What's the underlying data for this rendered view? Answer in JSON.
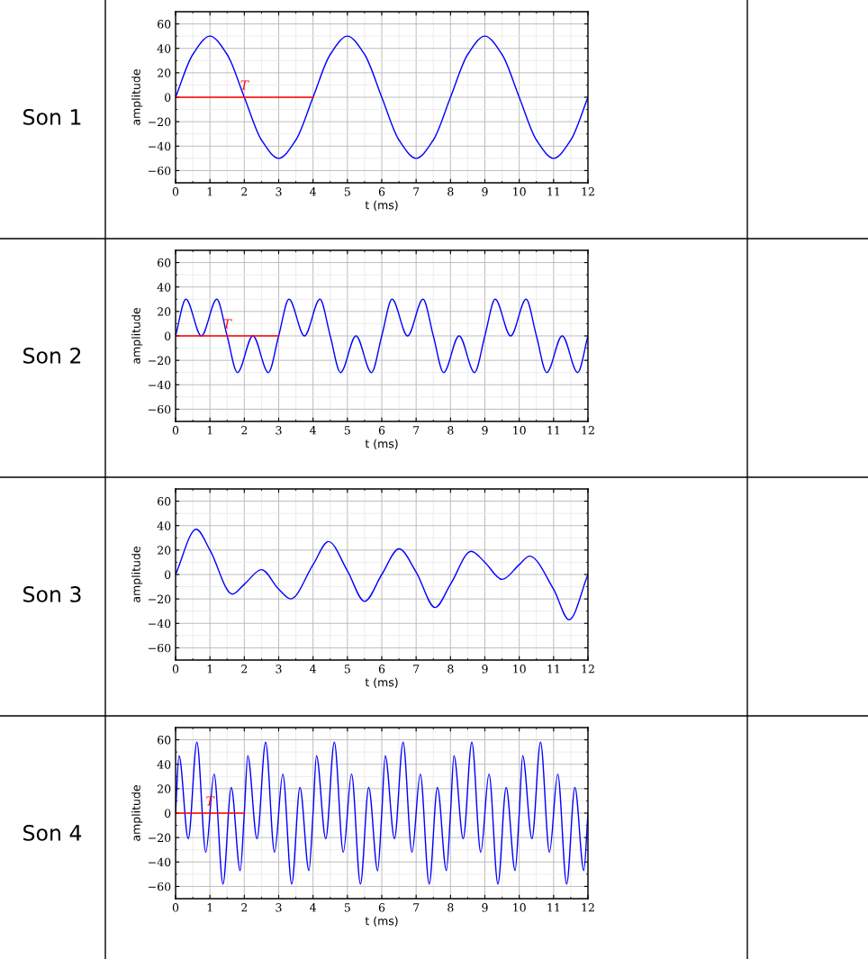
{
  "chart_data": [
    {
      "type": "line",
      "xlabel": "t (ms)",
      "ylabel": "amplitude",
      "annotations": [
        "Son 1",
        {
          "text": "T",
          "x": 2,
          "y": 0
        }
      ],
      "xlim": [
        0,
        12
      ],
      "ylim": [
        -70,
        70
      ],
      "xticks": [
        0,
        1,
        2,
        3,
        4,
        5,
        6,
        7,
        8,
        9,
        10,
        11,
        12
      ],
      "yticks": [
        {
          "value": -60,
          "label": "−60"
        },
        {
          "value": -40,
          "label": "−40"
        },
        {
          "value": -20,
          "label": "−20"
        },
        0,
        20,
        40,
        60
      ],
      "grid": true,
      "legend": false,
      "series": [
        {
          "color": "#0000ff",
          "x": [
            0,
            0.5,
            1,
            1.5,
            2,
            2.5,
            3,
            3.5,
            4,
            4.5,
            5,
            5.5,
            6,
            6.5,
            7,
            7.5,
            8,
            8.5,
            9,
            9.5,
            10,
            10.5,
            11,
            11.5,
            12
          ],
          "values": [
            0,
            35,
            50,
            35,
            0,
            -35,
            -50,
            -35,
            0,
            35,
            50,
            35,
            0,
            -35,
            -50,
            -35,
            0,
            35,
            50,
            35,
            0,
            -35,
            -50,
            -35,
            0
          ]
        },
        {
          "color": "#ff0000",
          "x": [
            0,
            4
          ],
          "values": [
            0,
            0
          ]
        }
      ]
    },
    {
      "type": "line",
      "xlabel": "t (ms)",
      "ylabel": "amplitude",
      "annotations": [
        "Son 2",
        {
          "text": "T",
          "x": 1.5,
          "y": 0
        }
      ],
      "xlim": [
        0,
        12
      ],
      "ylim": [
        -70,
        70
      ],
      "xticks": [
        0,
        1,
        2,
        3,
        4,
        5,
        6,
        7,
        8,
        9,
        10,
        11,
        12
      ],
      "yticks": [
        {
          "value": -60,
          "label": "−60"
        },
        {
          "value": -40,
          "label": "−40"
        },
        {
          "value": -20,
          "label": "−20"
        },
        0,
        20,
        40,
        60
      ],
      "grid": true,
      "legend": false,
      "series": [
        {
          "color": "#0000ff",
          "x": [
            0,
            0.3,
            0.75,
            1.2,
            1.5,
            1.8,
            2.25,
            2.7,
            3,
            3.3,
            3.75,
            4.2,
            4.5,
            4.8,
            5.25,
            5.7,
            6,
            6.3,
            6.75,
            7.2,
            7.5,
            7.8,
            8.25,
            8.7,
            9,
            9.3,
            9.75,
            10.2,
            10.5,
            10.8,
            11.25,
            11.7,
            12
          ],
          "values": [
            0,
            30,
            0,
            30,
            0,
            -30,
            0,
            -30,
            0,
            30,
            0,
            30,
            0,
            -30,
            0,
            -30,
            0,
            30,
            0,
            30,
            0,
            -30,
            0,
            -30,
            0,
            30,
            0,
            30,
            0,
            -30,
            0,
            -30,
            0
          ]
        },
        {
          "color": "#ff0000",
          "x": [
            0,
            3
          ],
          "values": [
            0,
            0
          ]
        }
      ]
    },
    {
      "type": "line",
      "xlabel": "t (ms)",
      "ylabel": "amplitude",
      "annotations": [
        "Son 3"
      ],
      "xlim": [
        0,
        12
      ],
      "ylim": [
        -70,
        70
      ],
      "xticks": [
        0,
        1,
        2,
        3,
        4,
        5,
        6,
        7,
        8,
        9,
        10,
        11,
        12
      ],
      "yticks": [
        {
          "value": -60,
          "label": "−60"
        },
        {
          "value": -40,
          "label": "−40"
        },
        {
          "value": -20,
          "label": "−20"
        },
        0,
        20,
        40,
        60
      ],
      "grid": true,
      "legend": false,
      "series": [
        {
          "color": "#0000ff",
          "x": [
            0,
            0.6,
            1,
            1.65,
            2,
            2.5,
            3,
            3.35,
            4,
            4.45,
            5,
            5.5,
            6,
            6.5,
            7,
            7.55,
            8,
            8.6,
            9,
            9.5,
            10,
            10.3,
            11,
            11.45,
            12
          ],
          "values": [
            0,
            37,
            20,
            -16,
            -8,
            4,
            -12,
            -20,
            8,
            27,
            3,
            -22,
            0,
            21,
            2,
            -27,
            -8,
            19,
            10,
            -4,
            8,
            15,
            -12,
            -37,
            0
          ]
        }
      ]
    },
    {
      "type": "line",
      "xlabel": "t (ms)",
      "ylabel": "amplitude",
      "annotations": [
        "Son 4",
        {
          "text": "T",
          "x": 1,
          "y": 0
        }
      ],
      "xlim": [
        0,
        12
      ],
      "ylim": [
        -70,
        70
      ],
      "xticks": [
        0,
        1,
        2,
        3,
        4,
        5,
        6,
        7,
        8,
        9,
        10,
        11,
        12
      ],
      "yticks": [
        {
          "value": -60,
          "label": "−60"
        },
        {
          "value": -40,
          "label": "−40"
        },
        {
          "value": -20,
          "label": "−20"
        },
        0,
        20,
        40,
        60
      ],
      "grid": true,
      "legend": false,
      "series": [
        {
          "color": "#0000ff",
          "x": [
            0,
            0.1,
            0.37,
            0.62,
            0.88,
            1.12,
            1.38,
            1.62,
            1.88,
            2,
            2.1,
            2.37,
            2.62,
            2.88,
            3.12,
            3.38,
            3.62,
            3.88,
            4,
            4.1,
            4.37,
            4.62,
            4.88,
            5.12,
            5.38,
            5.62,
            5.88,
            6,
            6.1,
            6.37,
            6.62,
            6.88,
            7.12,
            7.38,
            7.62,
            7.88,
            8,
            8.1,
            8.37,
            8.62,
            8.88,
            9.12,
            9.38,
            9.62,
            9.88,
            10,
            10.1,
            10.37,
            10.62,
            10.88,
            11.12,
            11.38,
            11.62,
            11.88,
            12
          ],
          "values": [
            0,
            47,
            -21,
            58,
            -32,
            32,
            -58,
            21,
            -47,
            0,
            47,
            -21,
            58,
            -32,
            32,
            -58,
            21,
            -47,
            0,
            47,
            -21,
            58,
            -32,
            32,
            -58,
            21,
            -47,
            0,
            47,
            -21,
            58,
            -32,
            32,
            -58,
            21,
            -47,
            0,
            47,
            -21,
            58,
            -32,
            32,
            -58,
            21,
            -47,
            0,
            47,
            -21,
            58,
            -32,
            32,
            -58,
            21,
            -47,
            0
          ]
        },
        {
          "color": "#ff0000",
          "x": [
            0,
            2
          ],
          "values": [
            0,
            0
          ]
        }
      ]
    }
  ]
}
